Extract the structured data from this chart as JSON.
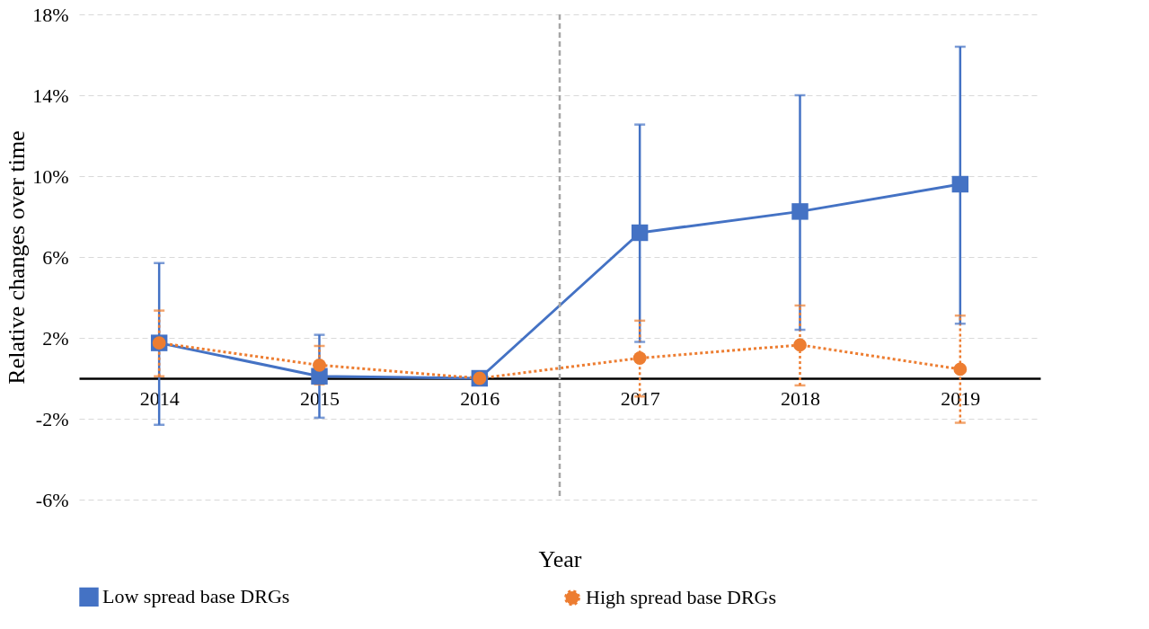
{
  "chart_data": {
    "type": "line",
    "xlabel": "Year",
    "ylabel": "Relative changes over time",
    "x": [
      2014,
      2015,
      2016,
      2017,
      2018,
      2019
    ],
    "xlim": [
      2013.5,
      2019.5
    ],
    "xticks": [
      2014,
      2015,
      2016,
      2017,
      2018,
      2019
    ],
    "ylim": [
      -6,
      18
    ],
    "yticks": [
      {
        "value": -6,
        "label": "-6%"
      },
      {
        "value": -2,
        "label": "-2%"
      },
      {
        "value": 2,
        "label": "2%"
      },
      {
        "value": 6,
        "label": "6%"
      },
      {
        "value": 10,
        "label": "10%"
      },
      {
        "value": 14,
        "label": "14%"
      },
      {
        "value": 18,
        "label": "18%"
      }
    ],
    "grid": "y",
    "legend": "bottom",
    "ref_lines": [
      {
        "axis": "x",
        "value": 2016.5,
        "color": "#a6a6a6",
        "line_style": "dashed"
      }
    ],
    "series": [
      {
        "name": "Low spread base DRGs",
        "color": "#4472c4",
        "marker": "square",
        "line_style": "solid",
        "values": [
          1.75,
          0.1,
          0,
          7.2,
          8.25,
          9.6
        ],
        "errors": [
          [
            -2.3,
            5.7
          ],
          [
            -1.95,
            2.15
          ],
          null,
          [
            1.8,
            12.55
          ],
          [
            2.4,
            14.0
          ],
          [
            2.7,
            16.4
          ]
        ]
      },
      {
        "name": "High spread base DRGs",
        "color": "#ed7d31",
        "marker": "circle",
        "line_style": "dotted",
        "values": [
          1.75,
          0.65,
          0,
          1.0,
          1.65,
          0.45
        ],
        "errors": [
          [
            0.1,
            3.35
          ],
          0.95,
          null,
          [
            -0.9,
            2.85
          ],
          [
            -0.35,
            3.6
          ],
          [
            -2.2,
            3.1
          ]
        ]
      }
    ]
  }
}
